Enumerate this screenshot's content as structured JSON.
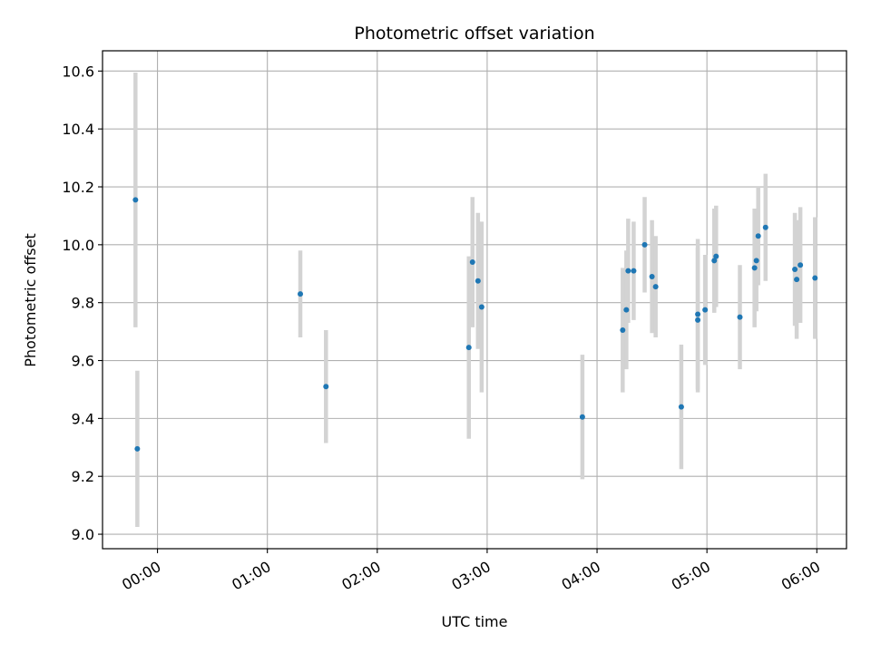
{
  "chart_data": {
    "type": "scatter",
    "title": "Photometric offset variation",
    "xlabel": "UTC time",
    "ylabel": "Photometric offset",
    "grid": true,
    "xlim_hours": [
      -0.5,
      6.27
    ],
    "ylim": [
      8.95,
      10.67
    ],
    "x_ticks": [
      {
        "value": 0,
        "label": "00:00"
      },
      {
        "value": 1,
        "label": "01:00"
      },
      {
        "value": 2,
        "label": "02:00"
      },
      {
        "value": 3,
        "label": "03:00"
      },
      {
        "value": 4,
        "label": "04:00"
      },
      {
        "value": 5,
        "label": "05:00"
      },
      {
        "value": 6,
        "label": "06:00"
      }
    ],
    "y_ticks": [
      {
        "value": 9.0,
        "label": "9.0"
      },
      {
        "value": 9.2,
        "label": "9.2"
      },
      {
        "value": 9.4,
        "label": "9.4"
      },
      {
        "value": 9.6,
        "label": "9.6"
      },
      {
        "value": 9.8,
        "label": "9.8"
      },
      {
        "value": 10.0,
        "label": "10.0"
      },
      {
        "value": 10.2,
        "label": "10.2"
      },
      {
        "value": 10.4,
        "label": "10.4"
      },
      {
        "value": 10.6,
        "label": "10.6"
      }
    ],
    "colors": {
      "point": "#1f77b4",
      "errorbar": "#d3d3d3",
      "grid": "#b0b0b0"
    },
    "series": [
      {
        "points": [
          {
            "x": "23:48",
            "y": 10.155,
            "err": 0.44
          },
          {
            "x": "23:49",
            "y": 9.295,
            "err": 0.27
          },
          {
            "x": "01:18",
            "y": 9.83,
            "err": 0.15
          },
          {
            "x": "01:32",
            "y": 9.51,
            "err": 0.195
          },
          {
            "x": "02:50",
            "y": 9.645,
            "err": 0.315
          },
          {
            "x": "02:52",
            "y": 9.94,
            "err": 0.225
          },
          {
            "x": "02:55",
            "y": 9.875,
            "err": 0.235
          },
          {
            "x": "02:57",
            "y": 9.785,
            "err": 0.295
          },
          {
            "x": "03:52",
            "y": 9.405,
            "err": 0.215
          },
          {
            "x": "04:14",
            "y": 9.705,
            "err": 0.215
          },
          {
            "x": "04:16",
            "y": 9.775,
            "err": 0.205
          },
          {
            "x": "04:17",
            "y": 9.91,
            "err": 0.18
          },
          {
            "x": "04:20",
            "y": 9.91,
            "err": 0.17
          },
          {
            "x": "04:26",
            "y": 10.0,
            "err": 0.165
          },
          {
            "x": "04:30",
            "y": 9.89,
            "err": 0.195
          },
          {
            "x": "04:32",
            "y": 9.855,
            "err": 0.175
          },
          {
            "x": "04:46",
            "y": 9.44,
            "err": 0.215
          },
          {
            "x": "04:55",
            "y": 9.76,
            "err": 0.26
          },
          {
            "x": "04:55",
            "y": 9.74,
            "err": 0.25
          },
          {
            "x": "04:59",
            "y": 9.775,
            "err": 0.19
          },
          {
            "x": "05:04",
            "y": 9.945,
            "err": 0.18
          },
          {
            "x": "05:05",
            "y": 9.96,
            "err": 0.175
          },
          {
            "x": "05:18",
            "y": 9.75,
            "err": 0.18
          },
          {
            "x": "05:26",
            "y": 9.92,
            "err": 0.205
          },
          {
            "x": "05:27",
            "y": 9.945,
            "err": 0.175
          },
          {
            "x": "05:28",
            "y": 10.03,
            "err": 0.17
          },
          {
            "x": "05:32",
            "y": 10.06,
            "err": 0.185
          },
          {
            "x": "05:48",
            "y": 9.915,
            "err": 0.195
          },
          {
            "x": "05:49",
            "y": 9.88,
            "err": 0.205
          },
          {
            "x": "05:51",
            "y": 9.93,
            "err": 0.2
          },
          {
            "x": "05:59",
            "y": 9.885,
            "err": 0.21
          }
        ]
      }
    ]
  }
}
